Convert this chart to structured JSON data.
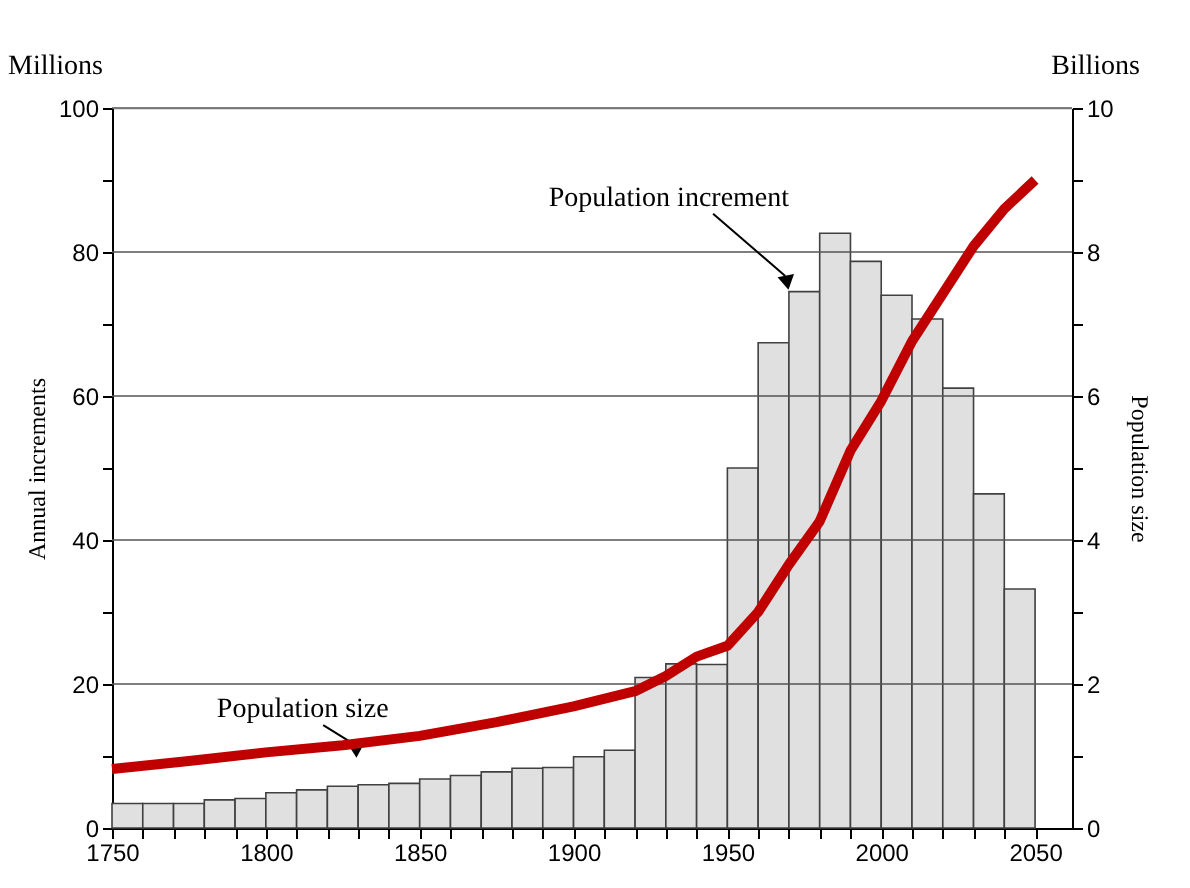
{
  "chart_data": {
    "type": "histogram",
    "bins": [
      1750,
      1760,
      1770,
      1780,
      1790,
      1800,
      1810,
      1820,
      1830,
      1840,
      1850,
      1860,
      1870,
      1880,
      1890,
      1900,
      1910,
      1920,
      1930,
      1940,
      1950,
      1960,
      1970,
      1980,
      1990,
      2000,
      2010,
      2020,
      2030,
      2040,
      2050
    ],
    "values": [
      3.4,
      3.4,
      3.4,
      3.9,
      4.1,
      4.9,
      5.3,
      5.8,
      6.0,
      6.2,
      6.8,
      7.3,
      7.8,
      8.3,
      8.4,
      9.9,
      10.8,
      20.9,
      22.8,
      22.7,
      50.0,
      67.4,
      74.5,
      82.6,
      78.7,
      74.0,
      70.7,
      61.1,
      46.4,
      33.2
    ],
    "color": "#e0e0e0",
    "series": [
      {
        "type": "line",
        "axis": "y2",
        "color": "#c00000",
        "x": [
          1750,
          1775,
          1800,
          1825,
          1850,
          1875,
          1900,
          1920,
          1930,
          1940,
          1950,
          1960,
          1970,
          1980,
          1990,
          2000,
          2010,
          2020,
          2030,
          2040,
          2050
        ],
        "values": [
          0.82,
          0.93,
          1.05,
          1.15,
          1.28,
          1.47,
          1.69,
          1.9,
          2.11,
          2.38,
          2.53,
          3.0,
          3.66,
          4.26,
          5.24,
          5.93,
          6.76,
          7.42,
          8.08,
          8.6,
          9.0
        ]
      }
    ],
    "xlim": [
      1750,
      2062
    ],
    "xticks": [
      1750,
      {
        "value": 1760,
        "label": null
      },
      {
        "value": 1770,
        "label": null
      },
      {
        "value": 1780,
        "label": null
      },
      {
        "value": 1790,
        "label": null
      },
      1800,
      {
        "value": 1810,
        "label": null
      },
      {
        "value": 1820,
        "label": null
      },
      {
        "value": 1830,
        "label": null
      },
      {
        "value": 1840,
        "label": null
      },
      1850,
      {
        "value": 1860,
        "label": null
      },
      {
        "value": 1870,
        "label": null
      },
      {
        "value": 1880,
        "label": null
      },
      {
        "value": 1890,
        "label": null
      },
      1900,
      {
        "value": 1910,
        "label": null
      },
      {
        "value": 1920,
        "label": null
      },
      {
        "value": 1930,
        "label": null
      },
      {
        "value": 1940,
        "label": null
      },
      1950,
      {
        "value": 1960,
        "label": null
      },
      {
        "value": 1970,
        "label": null
      },
      {
        "value": 1980,
        "label": null
      },
      {
        "value": 1990,
        "label": null
      },
      2000,
      {
        "value": 2010,
        "label": null
      },
      {
        "value": 2020,
        "label": null
      },
      {
        "value": 2030,
        "label": null
      },
      {
        "value": 2040,
        "label": null
      },
      2050
    ],
    "ylim": [
      0,
      100
    ],
    "yticks": [
      0,
      {
        "value": 10,
        "label": null
      },
      20,
      {
        "value": 30,
        "label": null
      },
      40,
      {
        "value": 50,
        "label": null
      },
      60,
      {
        "value": 70,
        "label": null
      },
      80,
      {
        "value": 90,
        "label": null
      },
      100
    ],
    "y2lim": [
      0,
      10
    ],
    "y2ticks": [
      0,
      {
        "value": 1,
        "label": null
      },
      2,
      {
        "value": 3,
        "label": null
      },
      4,
      {
        "value": 5,
        "label": null
      },
      6,
      {
        "value": 7,
        "label": null
      },
      8,
      {
        "value": 9,
        "label": null
      },
      10
    ],
    "ylabel": "Annual increments",
    "y2label": "Population size",
    "grid": "y",
    "annotations": [
      "Millions",
      "Billions",
      {
        "text": "Population increment",
        "x": 1972,
        "y": 75.5
      },
      {
        "text": "Population size",
        "x": 1831,
        "y": 11
      }
    ]
  }
}
